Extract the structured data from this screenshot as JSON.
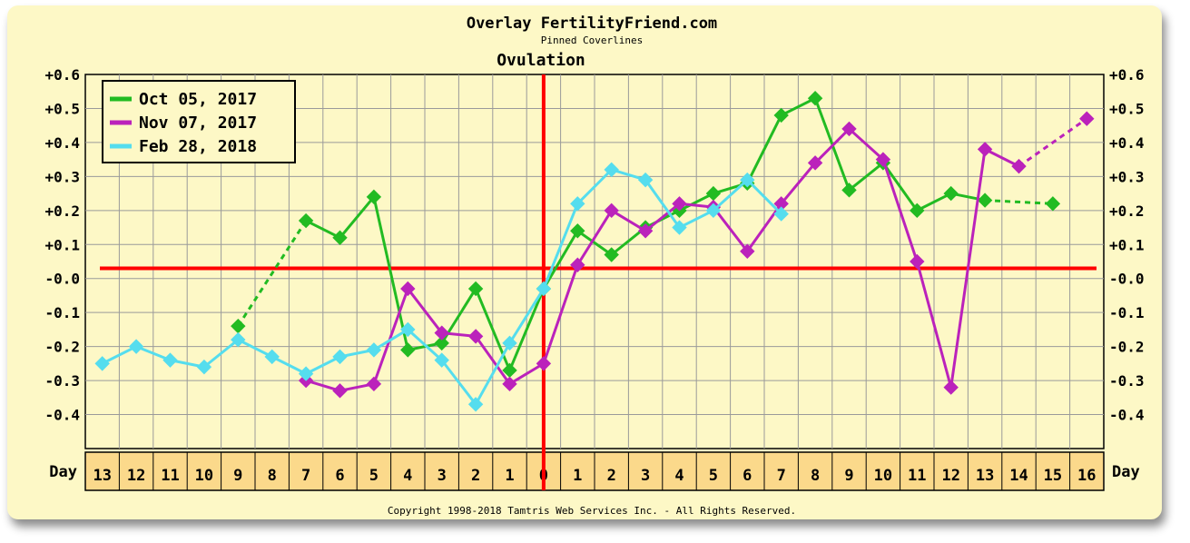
{
  "header": {
    "title": "Overlay FertilityFriend.com",
    "subtitle": "Pinned Coverlines",
    "section_label": "Ovulation"
  },
  "footer": {
    "copyright": "Copyright 1998-2018 Tamtris Web Services Inc. - All Rights Reserved."
  },
  "colors": {
    "background": "#fdf8c6",
    "plot_background": "#fdf8c6",
    "grid": "#9a9a9a",
    "day_cells": "#fbd98b",
    "coverline": "#ff0000",
    "ovulation_line": "#ff0000"
  },
  "chart_data": {
    "type": "line",
    "title": "Overlay FertilityFriend.com",
    "subtitle": "Pinned Coverlines",
    "xlabel": "Day",
    "y_tick_labels": [
      "+0.6",
      "+0.5",
      "+0.4",
      "+0.3",
      "+0.2",
      "+0.1",
      "-0.0",
      "-0.1",
      "-0.2",
      "-0.3",
      "-0.4"
    ],
    "ylim": [
      -0.5,
      0.6
    ],
    "x_range": [
      -13,
      16
    ],
    "day_labels": [
      "13",
      "12",
      "11",
      "10",
      "9",
      "8",
      "7",
      "6",
      "5",
      "4",
      "3",
      "2",
      "1",
      "0",
      "1",
      "2",
      "3",
      "4",
      "5",
      "6",
      "7",
      "8",
      "9",
      "10",
      "11",
      "12",
      "13",
      "14",
      "15",
      "16"
    ],
    "grid": true,
    "legend_position": "top-left",
    "coverline_y": 0.03,
    "ovulation_x": 0,
    "ovulation_label": "Ovulation",
    "series": [
      {
        "name": "Oct 05, 2017",
        "color": "#22bb22",
        "marker": "diamond",
        "points": [
          {
            "x": -9,
            "y": -0.14
          },
          {
            "x": -7,
            "y": 0.17
          },
          {
            "x": -6,
            "y": 0.12
          },
          {
            "x": -5,
            "y": 0.24
          },
          {
            "x": -4,
            "y": -0.21
          },
          {
            "x": -3,
            "y": -0.19
          },
          {
            "x": -2,
            "y": -0.03
          },
          {
            "x": -1,
            "y": -0.27
          },
          {
            "x": 0,
            "y": -0.03
          },
          {
            "x": 1,
            "y": 0.14
          },
          {
            "x": 2,
            "y": 0.07
          },
          {
            "x": 3,
            "y": 0.15
          },
          {
            "x": 4,
            "y": 0.2
          },
          {
            "x": 5,
            "y": 0.25
          },
          {
            "x": 6,
            "y": 0.28
          },
          {
            "x": 7,
            "y": 0.48
          },
          {
            "x": 8,
            "y": 0.53
          },
          {
            "x": 9,
            "y": 0.26
          },
          {
            "x": 10,
            "y": 0.34
          },
          {
            "x": 11,
            "y": 0.2
          },
          {
            "x": 12,
            "y": 0.25
          },
          {
            "x": 13,
            "y": 0.23
          },
          {
            "x": 15,
            "y": 0.22
          }
        ]
      },
      {
        "name": "Nov 07, 2017",
        "color": "#bb22bb",
        "marker": "diamond",
        "points": [
          {
            "x": -7,
            "y": -0.3
          },
          {
            "x": -6,
            "y": -0.33
          },
          {
            "x": -5,
            "y": -0.31
          },
          {
            "x": -4,
            "y": -0.03
          },
          {
            "x": -3,
            "y": -0.16
          },
          {
            "x": -2,
            "y": -0.17
          },
          {
            "x": -1,
            "y": -0.31
          },
          {
            "x": 0,
            "y": -0.25
          },
          {
            "x": 1,
            "y": 0.04
          },
          {
            "x": 2,
            "y": 0.2
          },
          {
            "x": 3,
            "y": 0.14
          },
          {
            "x": 4,
            "y": 0.22
          },
          {
            "x": 5,
            "y": 0.21
          },
          {
            "x": 6,
            "y": 0.08
          },
          {
            "x": 7,
            "y": 0.22
          },
          {
            "x": 8,
            "y": 0.34
          },
          {
            "x": 9,
            "y": 0.44
          },
          {
            "x": 10,
            "y": 0.35
          },
          {
            "x": 11,
            "y": 0.05
          },
          {
            "x": 12,
            "y": -0.32
          },
          {
            "x": 13,
            "y": 0.38
          },
          {
            "x": 14,
            "y": 0.33
          },
          {
            "x": 16,
            "y": 0.47
          }
        ]
      },
      {
        "name": "Feb 28, 2018",
        "color": "#55ddee",
        "marker": "diamond",
        "points": [
          {
            "x": -13,
            "y": -0.25
          },
          {
            "x": -12,
            "y": -0.2
          },
          {
            "x": -11,
            "y": -0.24
          },
          {
            "x": -10,
            "y": -0.26
          },
          {
            "x": -9,
            "y": -0.18
          },
          {
            "x": -8,
            "y": -0.23
          },
          {
            "x": -7,
            "y": -0.28
          },
          {
            "x": -6,
            "y": -0.23
          },
          {
            "x": -5,
            "y": -0.21
          },
          {
            "x": -4,
            "y": -0.15
          },
          {
            "x": -3,
            "y": -0.24
          },
          {
            "x": -2,
            "y": -0.37
          },
          {
            "x": -1,
            "y": -0.19
          },
          {
            "x": 0,
            "y": -0.03
          },
          {
            "x": 1,
            "y": 0.22
          },
          {
            "x": 2,
            "y": 0.32
          },
          {
            "x": 3,
            "y": 0.29
          },
          {
            "x": 4,
            "y": 0.15
          },
          {
            "x": 5,
            "y": 0.2
          },
          {
            "x": 6,
            "y": 0.29
          },
          {
            "x": 7,
            "y": 0.19
          }
        ]
      }
    ]
  }
}
